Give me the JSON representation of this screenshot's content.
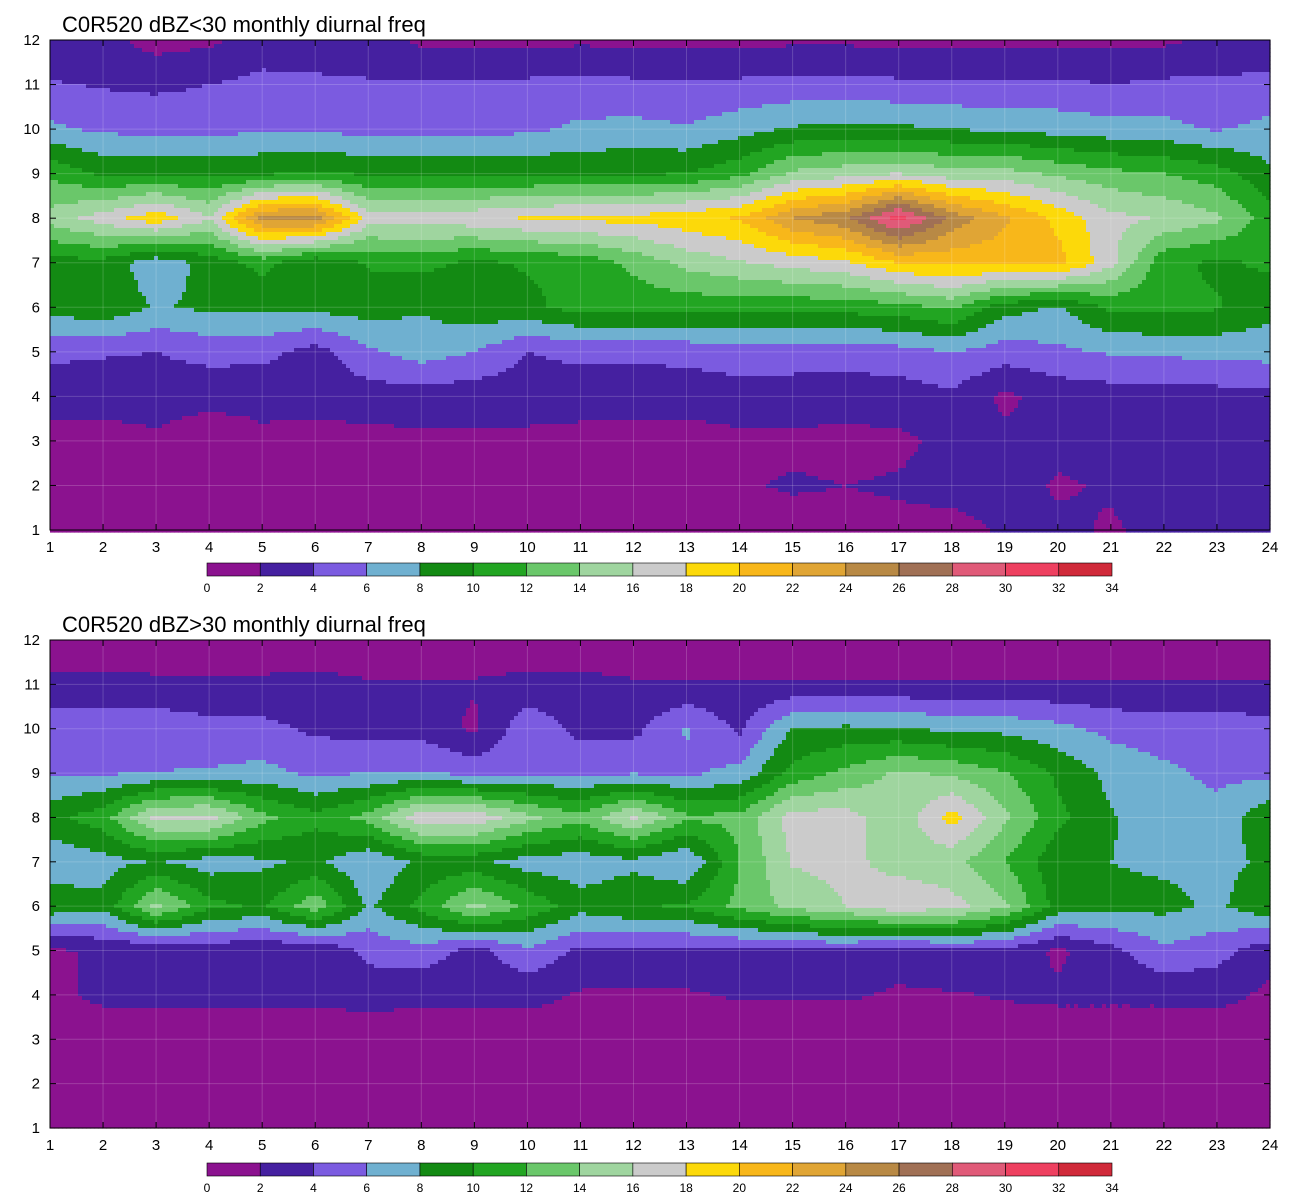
{
  "chart_data": [
    {
      "type": "heatmap",
      "title": "C0R520 dBZ<30 monthly diurnal freq",
      "x_ticks": [
        "1",
        "2",
        "3",
        "4",
        "5",
        "6",
        "7",
        "8",
        "9",
        "10",
        "11",
        "12",
        "13",
        "14",
        "15",
        "16",
        "17",
        "18",
        "19",
        "20",
        "21",
        "22",
        "23",
        "24"
      ],
      "y_ticks": [
        "1",
        "2",
        "3",
        "4",
        "5",
        "6",
        "7",
        "8",
        "9",
        "10",
        "11",
        "12"
      ],
      "xlim": [
        1,
        24
      ],
      "ylim": [
        1,
        12
      ],
      "levels": [
        0,
        2,
        4,
        6,
        8,
        10,
        12,
        14,
        16,
        18,
        20,
        22,
        24,
        26,
        28,
        30,
        32,
        34
      ],
      "colors": [
        "#8b128f",
        "#4520a0",
        "#7b5be0",
        "#6fb0d0",
        "#138a13",
        "#22a522",
        "#6ac76a",
        "#9fd59f",
        "#cbcbcb",
        "#fcd90a",
        "#f8b71a",
        "#e0a535",
        "#b88945",
        "#a07055",
        "#e05a78",
        "#ee4060",
        "#d02a3a"
      ],
      "x": [
        1,
        2,
        3,
        4,
        5,
        6,
        7,
        8,
        9,
        10,
        11,
        12,
        13,
        14,
        15,
        16,
        17,
        18,
        19,
        20,
        21,
        22,
        23,
        24
      ],
      "y": [
        1,
        2,
        3,
        4,
        5,
        6,
        7,
        8,
        9,
        10,
        11,
        12
      ],
      "z": [
        [
          0.5,
          1.0,
          1.2,
          1.0,
          1.3,
          1.6,
          1.4,
          0.6,
          0.8,
          0.9,
          1.0,
          1.2,
          1.0,
          1.0,
          1.2,
          1.5,
          1.6,
          1.4,
          2.2,
          2.4,
          1.8,
          2.5,
          2.5,
          2.4
        ],
        [
          0.8,
          1.5,
          0.2,
          2.0,
          0.8,
          0.6,
          1.3,
          1.5,
          1.5,
          1.3,
          1.4,
          1.2,
          1.6,
          1.8,
          2.2,
          2.0,
          2.2,
          2.6,
          2.8,
          1.8,
          2.2,
          2.6,
          2.8,
          2.6
        ],
        [
          1.0,
          1.2,
          1.6,
          0.5,
          1.6,
          1.2,
          1.4,
          1.6,
          1.6,
          1.5,
          1.4,
          1.4,
          1.2,
          1.6,
          1.6,
          1.4,
          1.6,
          2.5,
          2.4,
          2.5,
          2.6,
          2.7,
          2.8,
          2.8
        ],
        [
          3.0,
          2.8,
          3.0,
          2.8,
          2.6,
          2.8,
          3.0,
          3.0,
          2.8,
          3.0,
          2.8,
          2.6,
          2.8,
          3.0,
          3.0,
          3.0,
          3.0,
          3.6,
          1.6,
          2.8,
          3.0,
          3.0,
          3.2,
          3.4
        ],
        [
          4.4,
          4.2,
          4.0,
          4.6,
          4.6,
          3.2,
          5.6,
          7.0,
          6.0,
          4.0,
          4.5,
          4.6,
          4.6,
          5.2,
          5.0,
          4.8,
          5.2,
          6.0,
          5.0,
          5.6,
          6.2,
          6.4,
          6.6,
          6.8
        ],
        [
          8.8,
          9.6,
          7.8,
          8.4,
          8.6,
          8.6,
          9.0,
          8.2,
          9.4,
          9.5,
          10.8,
          10.6,
          10.8,
          10.6,
          10.6,
          10.8,
          11.2,
          12.4,
          8.8,
          7.8,
          10.4,
          10.6,
          10.2,
          8.6
        ],
        [
          9.2,
          9.4,
          6.6,
          8.8,
          10.6,
          8.2,
          10.2,
          10.5,
          9.6,
          10.2,
          10.6,
          12.6,
          14.6,
          15.8,
          16.8,
          17.6,
          20.0,
          20.6,
          20.6,
          20.8,
          16.6,
          10.6,
          9.6,
          10.4
        ],
        [
          14.8,
          17.0,
          19.4,
          16.2,
          24.6,
          25.0,
          17.0,
          17.0,
          17.4,
          18.2,
          18.6,
          18.6,
          19.4,
          20.2,
          24.0,
          25.6,
          31.0,
          25.4,
          22.4,
          19.4,
          16.6,
          15.8,
          14.4,
          11.0
        ],
        [
          11.6,
          9.6,
          9.8,
          9.6,
          9.8,
          10.2,
          9.8,
          9.8,
          9.6,
          9.6,
          9.6,
          9.8,
          10.0,
          11.4,
          14.4,
          15.2,
          16.0,
          14.8,
          14.8,
          13.6,
          12.6,
          12.0,
          11.0,
          8.4
        ],
        [
          6.4,
          5.6,
          5.4,
          5.2,
          5.8,
          5.6,
          5.4,
          5.4,
          5.4,
          5.6,
          6.4,
          6.6,
          6.2,
          7.2,
          8.2,
          8.6,
          8.4,
          8.0,
          7.6,
          7.2,
          6.8,
          6.6,
          5.8,
          6.6
        ],
        [
          4.2,
          3.8,
          3.6,
          4.0,
          4.6,
          4.4,
          4.2,
          4.2,
          4.2,
          4.4,
          4.6,
          4.4,
          4.2,
          4.4,
          4.6,
          4.6,
          4.4,
          4.2,
          4.2,
          4.4,
          4.0,
          4.4,
          4.4,
          4.6
        ],
        [
          2.2,
          2.6,
          1.2,
          1.6,
          2.8,
          2.8,
          2.8,
          1.6,
          1.6,
          1.6,
          1.6,
          1.6,
          1.6,
          1.6,
          1.6,
          1.6,
          1.6,
          1.6,
          1.6,
          1.6,
          1.6,
          1.6,
          2.4,
          2.4
        ]
      ]
    },
    {
      "type": "heatmap",
      "title": "C0R520 dBZ>30 monthly diurnal freq",
      "x_ticks": [
        "1",
        "2",
        "3",
        "4",
        "5",
        "6",
        "7",
        "8",
        "9",
        "10",
        "11",
        "12",
        "13",
        "14",
        "15",
        "16",
        "17",
        "18",
        "19",
        "20",
        "21",
        "22",
        "23",
        "24"
      ],
      "y_ticks": [
        "1",
        "2",
        "3",
        "4",
        "5",
        "6",
        "7",
        "8",
        "9",
        "10",
        "11",
        "12"
      ],
      "xlim": [
        1,
        24
      ],
      "ylim": [
        1,
        12
      ],
      "levels": [
        0,
        2,
        4,
        6,
        8,
        10,
        12,
        14,
        16,
        18,
        20,
        22,
        24,
        26,
        28,
        30,
        32,
        34
      ],
      "colors": [
        "#8b128f",
        "#4520a0",
        "#7b5be0",
        "#6fb0d0",
        "#138a13",
        "#22a522",
        "#6ac76a",
        "#9fd59f",
        "#cbcbcb",
        "#fcd90a",
        "#f8b71a",
        "#e0a535",
        "#b88945",
        "#a07055",
        "#e05a78",
        "#ee4060",
        "#d02a3a"
      ],
      "x": [
        1,
        2,
        3,
        4,
        5,
        6,
        7,
        8,
        9,
        10,
        11,
        12,
        13,
        14,
        15,
        16,
        17,
        18,
        19,
        20,
        21,
        22,
        23,
        24
      ],
      "y": [
        1,
        2,
        3,
        4,
        5,
        6,
        7,
        8,
        9,
        10,
        11,
        12
      ],
      "z": [
        [
          0.4,
          0.4,
          0.4,
          0.4,
          0.4,
          0.4,
          0.4,
          0.4,
          0.4,
          0.4,
          0.4,
          0.4,
          0.4,
          0.4,
          0.4,
          0.4,
          0.4,
          0.4,
          0.4,
          0.4,
          0.4,
          0.4,
          0.4,
          0.4
        ],
        [
          0.6,
          0.6,
          0.6,
          0.6,
          0.6,
          0.6,
          0.6,
          0.6,
          0.6,
          0.6,
          0.6,
          0.6,
          0.6,
          0.6,
          0.6,
          0.6,
          0.6,
          0.6,
          0.6,
          0.6,
          0.6,
          0.6,
          0.6,
          0.6
        ],
        [
          0.8,
          0.8,
          0.8,
          0.8,
          0.8,
          0.8,
          0.8,
          0.8,
          0.8,
          0.8,
          0.8,
          0.8,
          0.8,
          0.8,
          0.8,
          0.8,
          0.8,
          0.8,
          0.8,
          0.8,
          0.8,
          0.8,
          0.8,
          0.8
        ],
        [
          1.6,
          2.4,
          2.6,
          2.4,
          2.6,
          2.4,
          2.8,
          2.4,
          2.6,
          2.6,
          1.8,
          1.6,
          1.8,
          2.2,
          2.2,
          2.2,
          1.8,
          1.8,
          2.2,
          2.4,
          2.4,
          2.4,
          2.6,
          1.6
        ],
        [
          1.8,
          2.2,
          2.2,
          2.6,
          2.4,
          2.2,
          4.6,
          5.2,
          3.2,
          5.6,
          3.6,
          3.6,
          3.4,
          3.4,
          3.6,
          3.8,
          2.6,
          3.8,
          3.4,
          1.6,
          3.4,
          5.6,
          4.8,
          2.6
        ],
        [
          9.4,
          8.6,
          14.6,
          10.6,
          9.6,
          13.4,
          7.6,
          10.6,
          14.6,
          11.6,
          8.8,
          9.8,
          10.2,
          12.6,
          14.6,
          16.0,
          17.6,
          16.8,
          14.4,
          9.2,
          8.6,
          8.6,
          7.6,
          9.6
        ],
        [
          6.4,
          7.2,
          8.2,
          7.0,
          7.6,
          8.4,
          6.2,
          8.4,
          8.6,
          7.0,
          6.8,
          7.4,
          6.0,
          12.0,
          16.2,
          16.6,
          15.2,
          14.6,
          12.0,
          8.6,
          8.0,
          7.6,
          7.4,
          8.4
        ],
        [
          9.4,
          11.2,
          16.6,
          16.8,
          12.6,
          10.6,
          12.8,
          17.6,
          17.6,
          14.6,
          12.6,
          16.4,
          12.4,
          12.6,
          17.0,
          16.8,
          14.6,
          18.8,
          14.4,
          10.6,
          8.2,
          6.6,
          6.6,
          9.6
        ],
        [
          5.6,
          5.8,
          6.0,
          6.2,
          6.6,
          5.6,
          6.0,
          6.2,
          5.4,
          5.8,
          5.6,
          5.8,
          5.6,
          6.6,
          10.6,
          12.6,
          14.4,
          13.6,
          12.2,
          9.6,
          7.4,
          6.4,
          5.6,
          5.4
        ],
        [
          5.4,
          5.2,
          5.4,
          4.6,
          4.6,
          3.6,
          3.4,
          3.2,
          1.6,
          5.4,
          3.4,
          3.4,
          6.2,
          3.6,
          8.2,
          8.4,
          8.2,
          7.6,
          7.4,
          6.6,
          5.4,
          5.0,
          5.0,
          4.8
        ],
        [
          2.6,
          2.6,
          2.4,
          2.4,
          2.4,
          2.6,
          2.2,
          2.2,
          2.2,
          2.6,
          2.6,
          2.2,
          2.2,
          2.2,
          2.2,
          2.2,
          2.2,
          2.2,
          2.2,
          2.2,
          2.2,
          2.2,
          2.2,
          2.2
        ],
        [
          0.6,
          0.6,
          0.6,
          0.6,
          0.6,
          0.6,
          0.6,
          0.6,
          0.6,
          0.6,
          0.6,
          0.6,
          0.6,
          0.6,
          0.6,
          0.6,
          0.6,
          0.6,
          0.6,
          0.6,
          0.6,
          0.6,
          0.6,
          0.6
        ]
      ]
    }
  ]
}
